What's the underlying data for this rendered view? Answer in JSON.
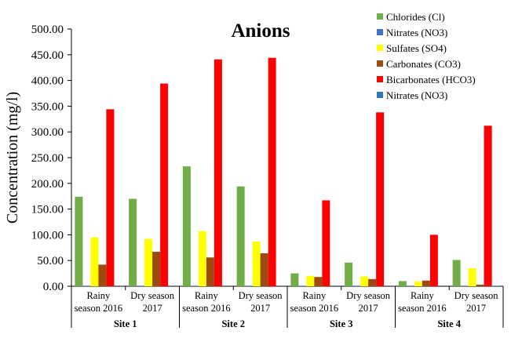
{
  "chart_data": {
    "type": "bar",
    "title": "Anions",
    "ylabel": "Concentration (mg/l)",
    "xlabel": "",
    "ylim": [
      0,
      500
    ],
    "yticks": [
      "0.00",
      "50.00",
      "100.00",
      "150.00",
      "200.00",
      "250.00",
      "300.00",
      "350.00",
      "400.00",
      "450.00",
      "500.00"
    ],
    "grid": false,
    "legend_position": "top-right",
    "categories": [
      [
        "Rainy",
        "season 2016"
      ],
      [
        "Dry season",
        "2017"
      ],
      [
        "Rainy",
        "season 2016"
      ],
      [
        "Dry season",
        "2017"
      ],
      [
        "Rainy",
        "season 2016"
      ],
      [
        "Dry season",
        "2017"
      ],
      [
        "Rainy",
        "season 2016"
      ],
      [
        "Dry season",
        "2017"
      ]
    ],
    "groups": [
      "Site 1",
      "Site 2",
      "Site 3",
      "Site 4"
    ],
    "series": [
      {
        "name": "Chlorides (Cl)",
        "color": "#70ad47",
        "values": [
          174,
          170,
          233,
          194,
          25,
          46,
          10,
          51
        ]
      },
      {
        "name": "Nitrates (NO3)",
        "color": "#4472c4",
        "values": [
          1,
          1,
          1,
          1,
          1,
          1,
          1,
          1
        ]
      },
      {
        "name": "Sulfates (SO4)",
        "color": "#ffff00",
        "values": [
          95,
          92,
          107,
          87,
          20,
          19,
          9,
          35
        ]
      },
      {
        "name": "Carbonates (CO3)",
        "color": "#9c4a12",
        "values": [
          42,
          67,
          56,
          64,
          18,
          14,
          11,
          3
        ]
      },
      {
        "name": "Bicarbonates (HCO3)",
        "color": "#ff0000",
        "values": [
          344,
          394,
          441,
          444,
          167,
          338,
          100,
          312
        ]
      },
      {
        "name": "Nitrates (NO3)",
        "color": "#2e75b6",
        "values": [
          0,
          0,
          0,
          0,
          0,
          0,
          0,
          1
        ]
      }
    ]
  }
}
